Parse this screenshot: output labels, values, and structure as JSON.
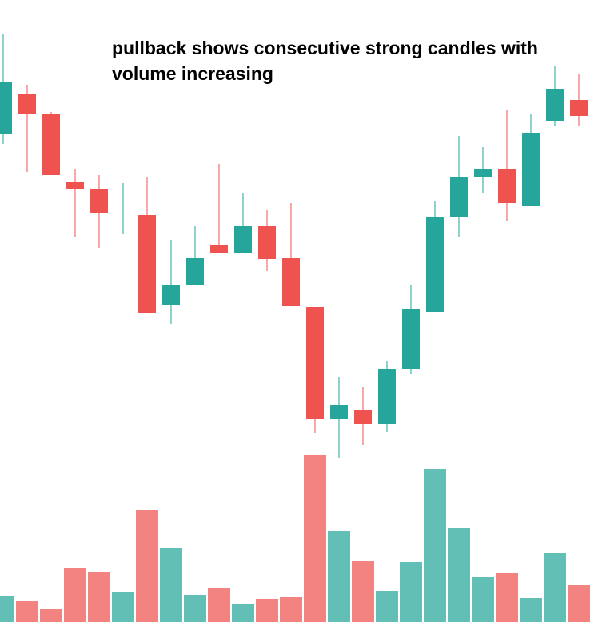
{
  "chart_data": {
    "type": "candlestick",
    "title": "pullback shows consecutive strong candles with volume increasing",
    "up_color": "#26a69a",
    "down_color": "#ef5350",
    "open": [
      433,
      482,
      458,
      372,
      363,
      328,
      331,
      219,
      244,
      293,
      284,
      317,
      277,
      216,
      76,
      87,
      70,
      139,
      210,
      329,
      378,
      388,
      342,
      449,
      475
    ],
    "high": [
      558,
      494,
      460,
      389,
      381,
      371,
      379,
      300,
      317,
      395,
      359,
      337,
      346,
      216,
      129,
      116,
      148,
      243,
      348,
      430,
      416,
      462,
      458,
      518,
      508
    ],
    "low": [
      420,
      385,
      381,
      304,
      290,
      307,
      208,
      195,
      244,
      284,
      284,
      261,
      217,
      59,
      27,
      43,
      60,
      132,
      210,
      304,
      358,
      323,
      342,
      443,
      443
    ],
    "close": [
      498,
      457,
      381,
      363,
      334,
      329,
      208,
      243,
      277,
      284,
      317,
      276,
      217,
      76,
      94,
      70,
      139,
      214,
      329,
      378,
      388,
      346,
      434,
      489,
      455
    ],
    "volume": [
      33,
      26,
      16,
      68,
      62,
      38,
      140,
      92,
      34,
      42,
      22,
      29,
      31,
      209,
      114,
      76,
      39,
      75,
      192,
      118,
      56,
      61,
      30,
      86,
      46
    ],
    "ylim": [
      0,
      600
    ],
    "volume_ylim": [
      0,
      220
    ]
  }
}
